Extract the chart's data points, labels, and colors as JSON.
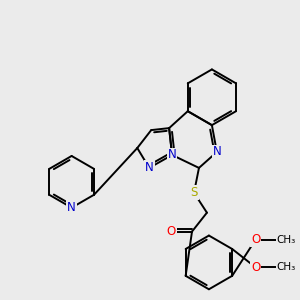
{
  "bg_color": "#ebebeb",
  "atom_colors": {
    "N": "#0000cc",
    "S": "#aaaa00",
    "O": "#ff0000",
    "C": "#000000"
  },
  "bond_lw": 1.4,
  "font_size": 8.5
}
